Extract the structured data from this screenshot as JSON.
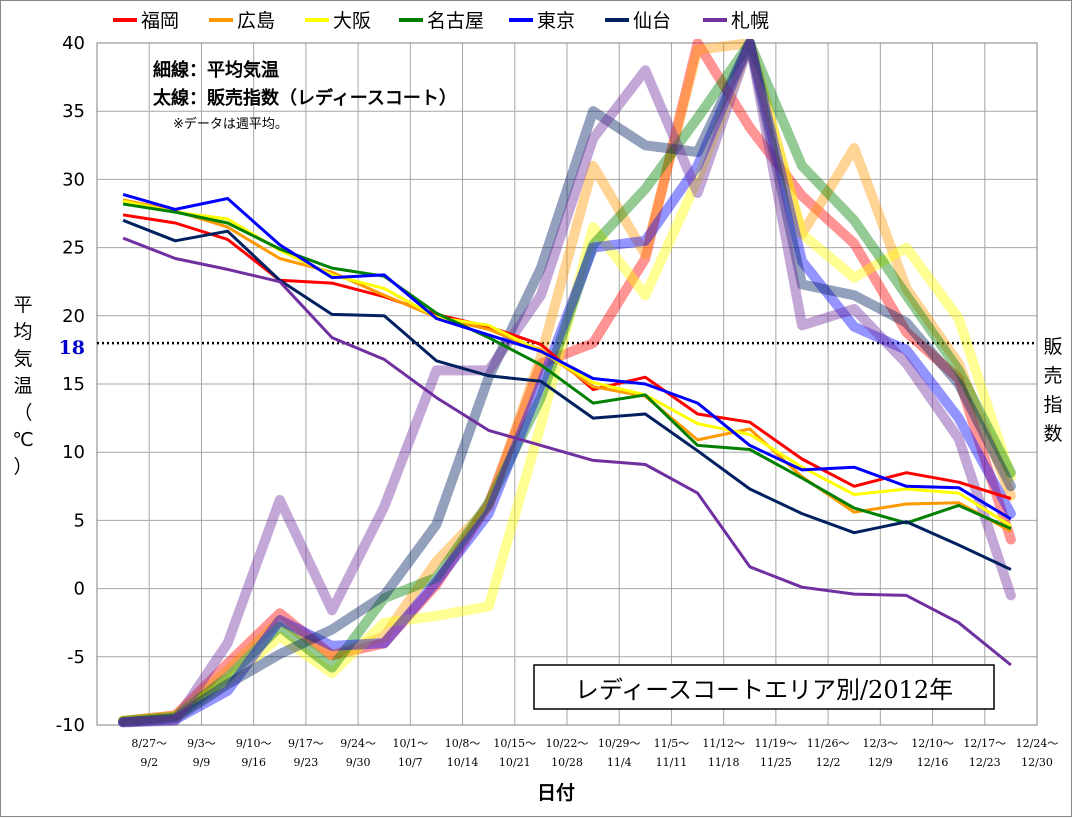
{
  "chart_data": {
    "type": "line",
    "title": "レディースコートエリア別/2012年",
    "xlabel": "日付",
    "ylabel": "平均気温（℃）",
    "y2label": "販売指数",
    "ylim": [
      -10,
      40
    ],
    "yticks": [
      -10,
      -5,
      0,
      5,
      10,
      15,
      20,
      25,
      30,
      35,
      40
    ],
    "reference_line": {
      "value": 18,
      "label": "18",
      "color": "#0000cc"
    },
    "notes": [
      "細線：平均気温",
      "太線：販売指数（レディースコート）",
      "※データは週平均。"
    ],
    "grid": true,
    "legend_position": "top",
    "categories": [
      [
        "8/27～",
        "9/2"
      ],
      [
        "9/3～",
        "9/9"
      ],
      [
        "9/10～",
        "9/16"
      ],
      [
        "9/17～",
        "9/23"
      ],
      [
        "9/24～",
        "9/30"
      ],
      [
        "10/1～",
        "10/7"
      ],
      [
        "10/8～",
        "10/14"
      ],
      [
        "10/15～",
        "10/21"
      ],
      [
        "10/22～",
        "10/28"
      ],
      [
        "10/29～",
        "11/4"
      ],
      [
        "11/5～",
        "11/11"
      ],
      [
        "11/12～",
        "11/18"
      ],
      [
        "11/19～",
        "11/25"
      ],
      [
        "11/26～",
        "12/2"
      ],
      [
        "12/3～",
        "12/9"
      ],
      [
        "12/10～",
        "12/16"
      ],
      [
        "12/17～",
        "12/23"
      ],
      [
        "12/24～",
        "12/30"
      ]
    ],
    "series": [
      {
        "name": "福岡",
        "color": "#ff0000",
        "temperature": [
          27.4,
          26.8,
          25.6,
          22.6,
          22.4,
          21.4,
          20.1,
          19.2,
          17.9,
          14.6,
          15.5,
          12.8,
          12.2,
          9.5,
          7.5,
          8.5,
          7.8,
          6.6
        ],
        "sales_index": [
          -9.7,
          -9.3,
          -5.5,
          -1.8,
          -4.9,
          -4.0,
          0.3,
          6.2,
          16.5,
          18.0,
          24.2,
          40.0,
          33.8,
          28.8,
          25.3,
          18.8,
          15.4,
          3.6
        ]
      },
      {
        "name": "広島",
        "color": "#ff9900",
        "temperature": [
          28.5,
          27.7,
          26.5,
          24.2,
          23.2,
          21.5,
          19.9,
          19.0,
          17.5,
          14.8,
          14.1,
          10.9,
          11.7,
          8.2,
          5.6,
          6.2,
          6.3,
          4.2
        ],
        "sales_index": [
          -9.7,
          -9.3,
          -6.0,
          -2.3,
          -4.9,
          -3.5,
          2.0,
          6.0,
          17.0,
          31.0,
          24.5,
          39.5,
          40.0,
          26.0,
          32.3,
          22.0,
          16.5,
          6.8
        ]
      },
      {
        "name": "大阪",
        "color": "#ffff00",
        "temperature": [
          28.4,
          27.6,
          27.1,
          24.8,
          23.0,
          22.0,
          19.9,
          19.3,
          17.4,
          15.1,
          14.2,
          12.1,
          11.3,
          8.9,
          6.9,
          7.3,
          7.0,
          4.6
        ],
        "sales_index": [
          -9.7,
          -9.4,
          -6.8,
          -3.5,
          -6.2,
          -2.5,
          -2.0,
          -1.3,
          12.0,
          26.5,
          21.5,
          30.0,
          40.0,
          26.0,
          22.8,
          25.0,
          19.8,
          8.2
        ]
      },
      {
        "name": "名古屋",
        "color": "#008000",
        "temperature": [
          28.2,
          27.6,
          26.8,
          24.9,
          23.5,
          22.9,
          20.2,
          18.4,
          16.4,
          13.6,
          14.2,
          10.5,
          10.2,
          8.1,
          5.9,
          4.8,
          6.1,
          4.4
        ],
        "sales_index": [
          -9.7,
          -9.4,
          -6.5,
          -2.8,
          -5.8,
          -0.7,
          0.8,
          6.3,
          14.0,
          25.2,
          29.3,
          34.5,
          40.0,
          31.0,
          27.0,
          21.5,
          16.0,
          8.5
        ]
      },
      {
        "name": "東京",
        "color": "#0000ff",
        "temperature": [
          28.9,
          27.8,
          28.6,
          25.2,
          22.8,
          23.0,
          19.8,
          18.6,
          17.4,
          15.4,
          15.0,
          13.6,
          10.5,
          8.7,
          8.9,
          7.5,
          7.4,
          5.1
        ],
        "sales_index": [
          -9.8,
          -9.6,
          -7.5,
          -2.3,
          -4.2,
          -4.0,
          0.5,
          5.5,
          15.0,
          25.0,
          25.5,
          31.0,
          40.0,
          24.0,
          19.2,
          17.5,
          12.5,
          5.5
        ]
      },
      {
        "name": "仙台",
        "color": "#002060",
        "temperature": [
          27.0,
          25.5,
          26.2,
          22.6,
          20.1,
          20.0,
          16.7,
          15.6,
          15.2,
          12.5,
          12.8,
          10.1,
          7.3,
          5.5,
          4.1,
          4.9,
          3.2,
          1.4
        ],
        "sales_index": [
          -9.8,
          -9.5,
          -7.0,
          -4.8,
          -3.0,
          -0.5,
          4.7,
          15.5,
          23.5,
          35.0,
          32.5,
          32.0,
          40.0,
          22.3,
          21.5,
          19.5,
          15.0,
          7.5
        ]
      },
      {
        "name": "札幌",
        "color": "#7030a0",
        "temperature": [
          25.7,
          24.2,
          23.4,
          22.5,
          18.4,
          16.8,
          14.0,
          11.6,
          10.5,
          9.4,
          9.1,
          7.0,
          1.6,
          0.1,
          -0.4,
          -0.5,
          -2.5,
          -5.6
        ],
        "sales_index": [
          -9.8,
          -9.7,
          -4.0,
          6.5,
          -1.6,
          6.0,
          16.0,
          16.0,
          21.5,
          33.0,
          38.0,
          29.0,
          40.0,
          19.3,
          20.5,
          16.5,
          11.0,
          -0.5
        ]
      }
    ]
  }
}
